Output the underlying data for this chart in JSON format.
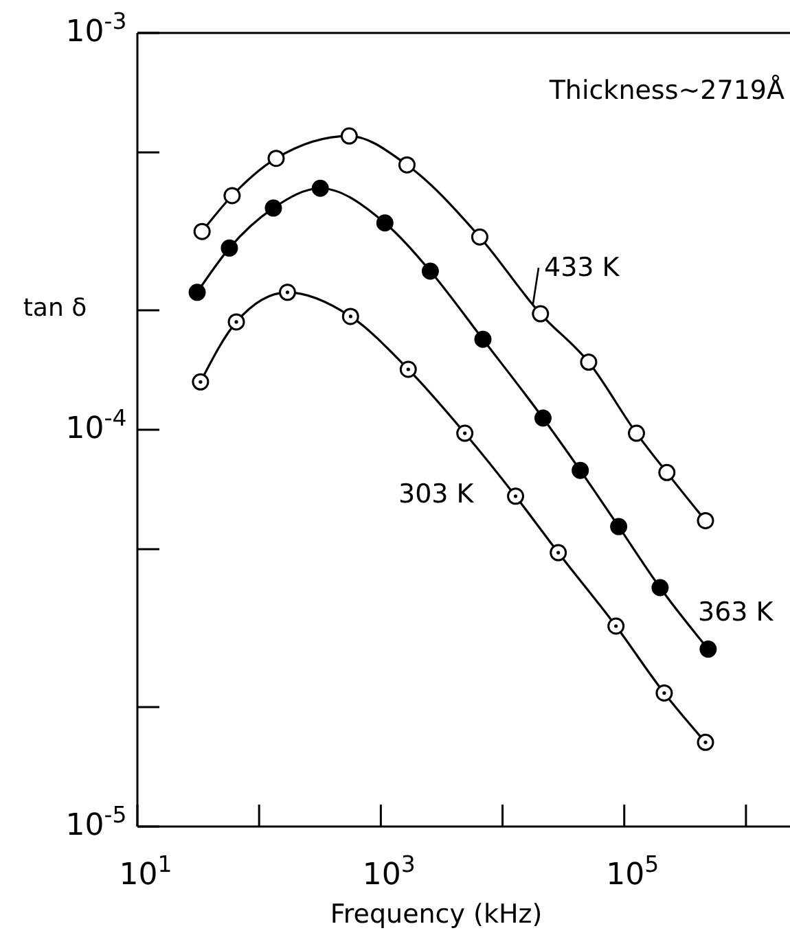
{
  "chart_data": {
    "type": "line",
    "xlabel": "Frequency (kHz)",
    "ylabel": "tan δ",
    "log": "xy",
    "marker": "circle",
    "line_style": "solid",
    "grid": false,
    "xlim": [
      10,
      2300000
    ],
    "ylim": [
      1e-05,
      0.001
    ],
    "xticks": [
      {
        "value": 10,
        "label": "10$^{1}$"
      },
      {
        "value": 100,
        "label": null
      },
      {
        "value": 1000,
        "label": "10$^{3}$"
      },
      {
        "value": 10000,
        "label": null
      },
      {
        "value": 100000,
        "label": "10$^{5}$"
      },
      {
        "value": 1000000,
        "label": null
      }
    ],
    "yticks": [
      {
        "value": 0.001,
        "label": "10$^{-3}$"
      },
      {
        "value": 0.0005,
        "label": null
      },
      {
        "value": 0.0002,
        "label": null
      },
      {
        "value": 0.0001,
        "label": "10$^{-4}$"
      },
      {
        "value": 5e-05,
        "label": null
      },
      {
        "value": 2e-05,
        "label": null
      },
      {
        "value": 1e-05,
        "label": "10$^{-5}$"
      }
    ],
    "series": [
      {
        "name": "433 K",
        "color": "#000000",
        "x": [
          34,
          60,
          138,
          550,
          1640,
          6500,
          20500,
          51000,
          126000,
          224000,
          465000
        ],
        "values": [
          0.000316,
          0.000389,
          0.000483,
          0.00055,
          0.000465,
          0.000306,
          0.000196,
          0.000148,
          9.8e-05,
          7.8e-05,
          5.9e-05
        ]
      },
      {
        "name": "363 K",
        "color": "#000000",
        "x": [
          31,
          57,
          131,
          318,
          1080,
          2550,
          6900,
          21500,
          43500,
          90000,
          197000,
          489000
        ],
        "values": [
          0.000222,
          0.000287,
          0.000362,
          0.000406,
          0.000332,
          0.000251,
          0.000169,
          0.000107,
          7.9e-05,
          5.7e-05,
          4e-05,
          2.8e-05
        ]
      },
      {
        "name": "303 K",
        "color": "#000000",
        "x": [
          33,
          65,
          171,
          564,
          1680,
          4900,
          12800,
          28700,
          85500,
          213000,
          465000
        ],
        "values": [
          0.000132,
          0.000187,
          0.000222,
          0.000193,
          0.000142,
          9.8e-05,
          6.8e-05,
          4.9e-05,
          3.2e-05,
          2.17e-05,
          1.63e-05
        ]
      }
    ],
    "annotations": [
      "Thickness∼2719Å"
    ]
  }
}
